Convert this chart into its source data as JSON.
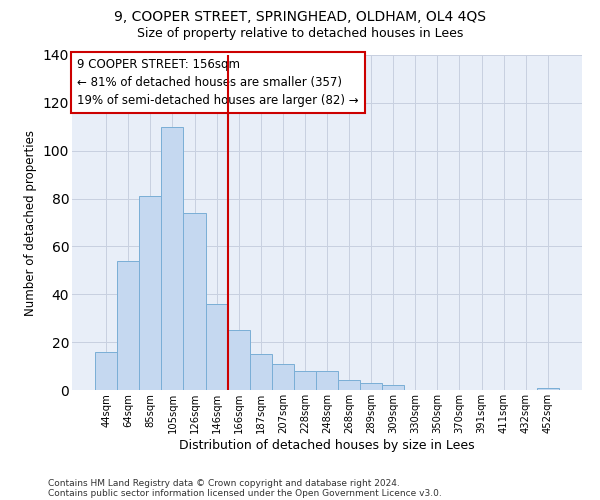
{
  "title1": "9, COOPER STREET, SPRINGHEAD, OLDHAM, OL4 4QS",
  "title2": "Size of property relative to detached houses in Lees",
  "xlabel": "Distribution of detached houses by size in Lees",
  "ylabel": "Number of detached properties",
  "categories": [
    "44sqm",
    "64sqm",
    "85sqm",
    "105sqm",
    "126sqm",
    "146sqm",
    "166sqm",
    "187sqm",
    "207sqm",
    "228sqm",
    "248sqm",
    "268sqm",
    "289sqm",
    "309sqm",
    "330sqm",
    "350sqm",
    "370sqm",
    "391sqm",
    "411sqm",
    "432sqm",
    "452sqm"
  ],
  "values": [
    16,
    54,
    81,
    110,
    74,
    36,
    25,
    15,
    11,
    8,
    8,
    4,
    3,
    2,
    0,
    0,
    0,
    0,
    0,
    0,
    1
  ],
  "bar_color": "#c5d8f0",
  "bar_edge_color": "#7aaed6",
  "annotation_line1": "9 COOPER STREET: 156sqm",
  "annotation_line2": "← 81% of detached houses are smaller (357)",
  "annotation_line3": "19% of semi-detached houses are larger (82) →",
  "annotation_box_color": "#ffffff",
  "annotation_box_edge": "#cc0000",
  "vline_color": "#cc0000",
  "vline_bar_index": 5,
  "ylim": [
    0,
    140
  ],
  "yticks": [
    0,
    20,
    40,
    60,
    80,
    100,
    120,
    140
  ],
  "grid_color": "#c8d0e0",
  "bg_color": "#e8eef8",
  "footer1": "Contains HM Land Registry data © Crown copyright and database right 2024.",
  "footer2": "Contains public sector information licensed under the Open Government Licence v3.0."
}
